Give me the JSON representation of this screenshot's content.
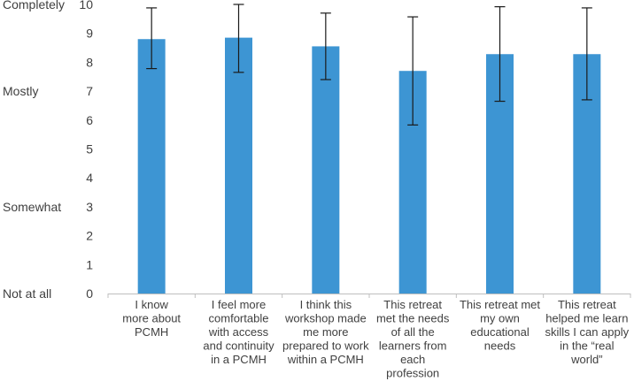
{
  "chart_data": {
    "type": "bar",
    "title": "",
    "xlabel": "",
    "ylabel": "",
    "ylim": [
      0,
      10
    ],
    "yticks": [
      0,
      1,
      2,
      3,
      4,
      5,
      6,
      7,
      8,
      9,
      10
    ],
    "grid": false,
    "legend": "none",
    "bar_color": "#3d95d3",
    "error_color": "#1a1a1a",
    "scale_labels": [
      {
        "text": "Completely",
        "value": 10
      },
      {
        "text": "Mostly",
        "value": 7
      },
      {
        "text": "Somewhat",
        "value": 3
      },
      {
        "text": "Not at all",
        "value": 0
      }
    ],
    "categories": [
      [
        "I know",
        "more about",
        "PCMH"
      ],
      [
        "I feel more",
        "comfortable",
        "with access",
        "and continuity",
        "in a PCMH"
      ],
      [
        "I think this",
        "workshop made",
        "me more",
        "prepared to work",
        "within a PCMH"
      ],
      [
        "This retreat",
        "met the needs",
        "of all the",
        "learners from",
        "each",
        "profession"
      ],
      [
        "This retreat met",
        "my own",
        "educational",
        "needs"
      ],
      [
        "This retreat",
        "helped me learn",
        "skills I can apply",
        "in the “real",
        "world”"
      ]
    ],
    "values": [
      8.8,
      8.85,
      8.55,
      7.7,
      8.28,
      8.28
    ],
    "error_low": [
      7.78,
      7.65,
      7.4,
      5.83,
      6.65,
      6.7
    ],
    "error_high": [
      9.88,
      10.0,
      9.7,
      9.57,
      9.92,
      9.88
    ]
  }
}
